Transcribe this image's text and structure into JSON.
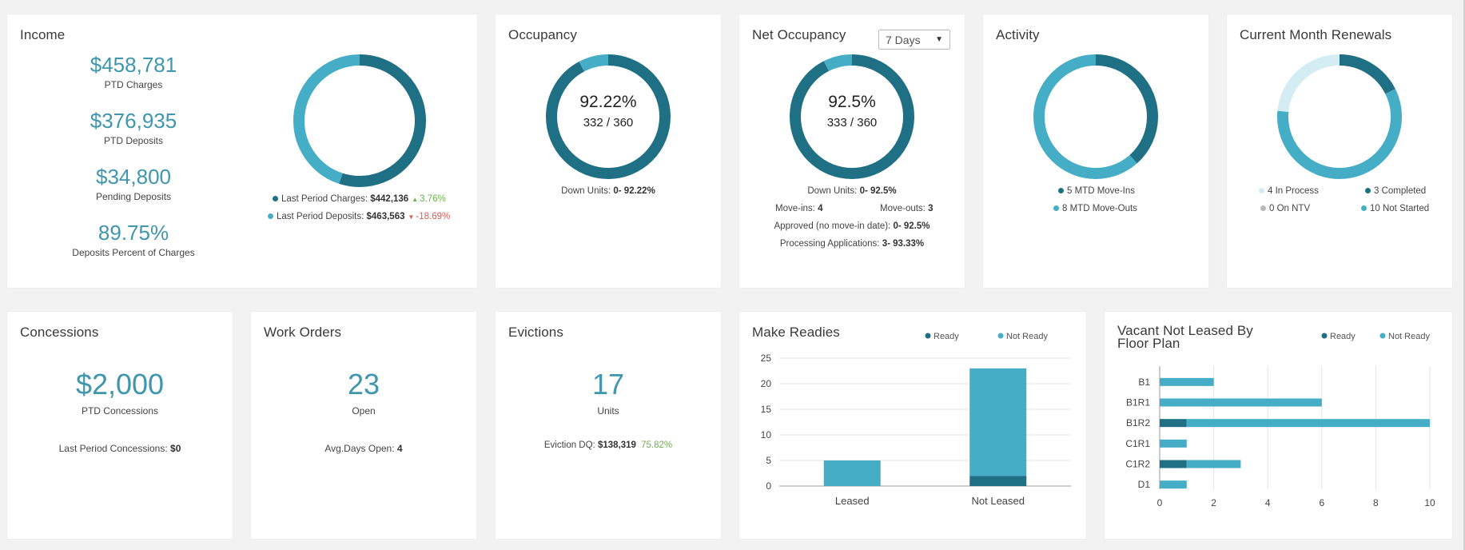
{
  "colors": {
    "dark_teal": "#1f7085",
    "teal": "#45aec6",
    "light_teal": "#d4edf3",
    "gray": "#b8b8b8",
    "number_blue": "#3f96ad"
  },
  "income": {
    "title": "Income",
    "stats": [
      {
        "value": "$458,781",
        "label": "PTD Charges"
      },
      {
        "value": "$376,935",
        "label": "PTD Deposits"
      },
      {
        "value": "$34,800",
        "label": "Pending Deposits"
      },
      {
        "value": "89.75%",
        "label": "Deposits Percent of Charges"
      }
    ],
    "donut": {
      "dark_fraction": 0.55
    },
    "legend": [
      {
        "label": "Last Period Charges:",
        "value": "$442,136",
        "arrow": "▲",
        "change": "3.76%",
        "color": "#1f7085"
      },
      {
        "label": "Last Period Deposits:",
        "value": "$463,563",
        "arrow": "▼",
        "change": "-18.69%",
        "color": "#45aec6"
      }
    ]
  },
  "occupancy": {
    "title": "Occupancy",
    "percent": "92.22%",
    "ratio": "332 / 360",
    "fraction": 0.9222,
    "down_units_label": "Down Units:",
    "down_units_value": "0- 92.22%"
  },
  "net_occupancy": {
    "title": "Net Occupancy",
    "period_select": "7 Days",
    "percent": "92.5%",
    "ratio": "333 / 360",
    "fraction": 0.925,
    "down_units_label": "Down Units:",
    "down_units_value": "0- 92.5%",
    "move_ins_label": "Move-ins:",
    "move_ins_value": "4",
    "move_outs_label": "Move-outs:",
    "move_outs_value": "3",
    "approved_label": "Approved (no move-in date):",
    "approved_value": "0- 92.5%",
    "processing_label": "Processing Applications:",
    "processing_value": "3- 93.33%"
  },
  "activity": {
    "title": "Activity",
    "move_ins": 5,
    "move_outs": 8,
    "legend": [
      {
        "label": "5 MTD Move-Ins",
        "color": "#1f7085"
      },
      {
        "label": "8 MTD Move-Outs",
        "color": "#45aec6"
      }
    ]
  },
  "renewals": {
    "title": "Current Month Renewals",
    "segments": [
      {
        "label": "3 Completed",
        "value": 3,
        "color": "#1f7085"
      },
      {
        "label": "10 Not Started",
        "value": 10,
        "color": "#45aec6"
      },
      {
        "label": "4 In Process",
        "value": 4,
        "color": "#d4edf3"
      },
      {
        "label": "0 On NTV",
        "value": 0,
        "color": "#b8b8b8"
      }
    ]
  },
  "concessions": {
    "title": "Concessions",
    "value": "$2,000",
    "label": "PTD Concessions",
    "last_period_label": "Last Period Concessions:",
    "last_period_value": "$0"
  },
  "work_orders": {
    "title": "Work Orders",
    "value": "23",
    "label": "Open",
    "avg_label": "Avg.Days Open:",
    "avg_value": "4"
  },
  "evictions": {
    "title": "Evictions",
    "value": "17",
    "label": "Units",
    "dq_label": "Eviction DQ:",
    "dq_value": "$138,319",
    "dq_percent": "75.82%"
  },
  "make_readies": {
    "title": "Make Readies",
    "chart_data": {
      "type": "bar",
      "stacked": true,
      "categories": [
        "Leased",
        "Not Leased"
      ],
      "series": [
        {
          "name": "Ready",
          "values": [
            0,
            2
          ],
          "color": "#1f7085"
        },
        {
          "name": "Not Ready",
          "values": [
            5,
            21
          ],
          "color": "#45aec6"
        }
      ],
      "ylim": [
        0,
        25
      ],
      "yticks": [
        0,
        5,
        10,
        15,
        20,
        25
      ],
      "legend_position": "top-right",
      "grid": true
    }
  },
  "vacant_not_leased": {
    "title": "Vacant Not Leased By Floor Plan",
    "chart_data": {
      "type": "bar",
      "orientation": "horizontal",
      "stacked": true,
      "categories": [
        "B1",
        "B1R1",
        "B1R2",
        "C1R1",
        "C1R2",
        "D1"
      ],
      "series": [
        {
          "name": "Ready",
          "values": [
            0,
            0,
            1,
            0,
            1,
            0
          ],
          "color": "#1f7085"
        },
        {
          "name": "Not Ready",
          "values": [
            2,
            6,
            9,
            1,
            2,
            1
          ],
          "color": "#45aec6"
        }
      ],
      "xlim": [
        0,
        10
      ],
      "xticks": [
        0,
        2,
        4,
        6,
        8,
        10
      ],
      "legend_position": "top-right",
      "grid": true
    }
  }
}
